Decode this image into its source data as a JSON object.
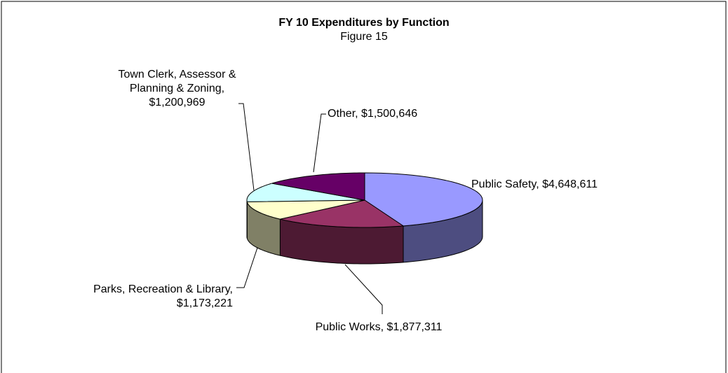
{
  "chart_data": {
    "type": "pie3d",
    "title": "FY 10 Expenditures by Function",
    "subtitle": "Figure 15",
    "categories": [
      "Public Safety,",
      "Public Works,",
      "Parks, Recreation & Library,",
      "Town Clerk, Assessor & Planning & Zoning,",
      "Other,"
    ],
    "values": [
      4648611,
      1877311,
      1173221,
      1200969,
      1500646
    ],
    "value_labels": [
      "$4,648,611",
      "$1,877,311",
      "$1,173,221",
      "$1,200,969",
      "$1,500,646"
    ],
    "colors": [
      "#9999ff",
      "#993366",
      "#ffffcc",
      "#ccffff",
      "#660066"
    ]
  }
}
